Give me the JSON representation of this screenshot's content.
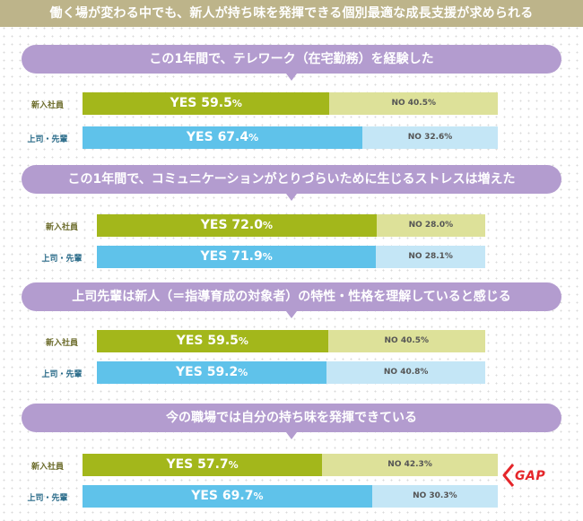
{
  "title": "働く場が変わる中でも、新人が持ち味を発揮できる個別最適な成長支援が求められる",
  "colors": {
    "newcomer_yes": "#a3b71b",
    "newcomer_no": "#dde199",
    "senior_yes": "#5fc2ea",
    "senior_no": "#c4e6f6",
    "banner": "#b39ccf",
    "gap": "#e5262a"
  },
  "gap_label": "GAP",
  "chart_data": [
    {
      "type": "bar",
      "orientation": "horizontal",
      "stacked": true,
      "title": "この1年間で、テレワーク（在宅勤務）を経験した",
      "categories": [
        "新入社員",
        "上司・先輩"
      ],
      "series": [
        {
          "name": "YES",
          "values": [
            59.5,
            67.4
          ]
        },
        {
          "name": "NO",
          "values": [
            40.5,
            32.6
          ]
        }
      ],
      "xlim": [
        0,
        100
      ]
    },
    {
      "type": "bar",
      "orientation": "horizontal",
      "stacked": true,
      "title": "この1年間で、コミュニケーションがとりづらいために生じるストレスは増えた",
      "categories": [
        "新入社員",
        "上司・先輩"
      ],
      "series": [
        {
          "name": "YES",
          "values": [
            72.0,
            71.9
          ]
        },
        {
          "name": "NO",
          "values": [
            28.0,
            28.1
          ]
        }
      ],
      "xlim": [
        0,
        100
      ]
    },
    {
      "type": "bar",
      "orientation": "horizontal",
      "stacked": true,
      "title": "上司先輩は新人（＝指導育成の対象者）の特性・性格を理解していると感じる",
      "categories": [
        "新入社員",
        "上司・先輩"
      ],
      "series": [
        {
          "name": "YES",
          "values": [
            59.5,
            59.2
          ]
        },
        {
          "name": "NO",
          "values": [
            40.5,
            40.8
          ]
        }
      ],
      "xlim": [
        0,
        100
      ]
    },
    {
      "type": "bar",
      "orientation": "horizontal",
      "stacked": true,
      "title": "今の職場では自分の持ち味を発揮できている",
      "categories": [
        "新入社員",
        "上司・先輩"
      ],
      "series": [
        {
          "name": "YES",
          "values": [
            57.7,
            69.7
          ]
        },
        {
          "name": "NO",
          "values": [
            42.3,
            30.3
          ]
        }
      ],
      "xlim": [
        0,
        100
      ]
    }
  ]
}
